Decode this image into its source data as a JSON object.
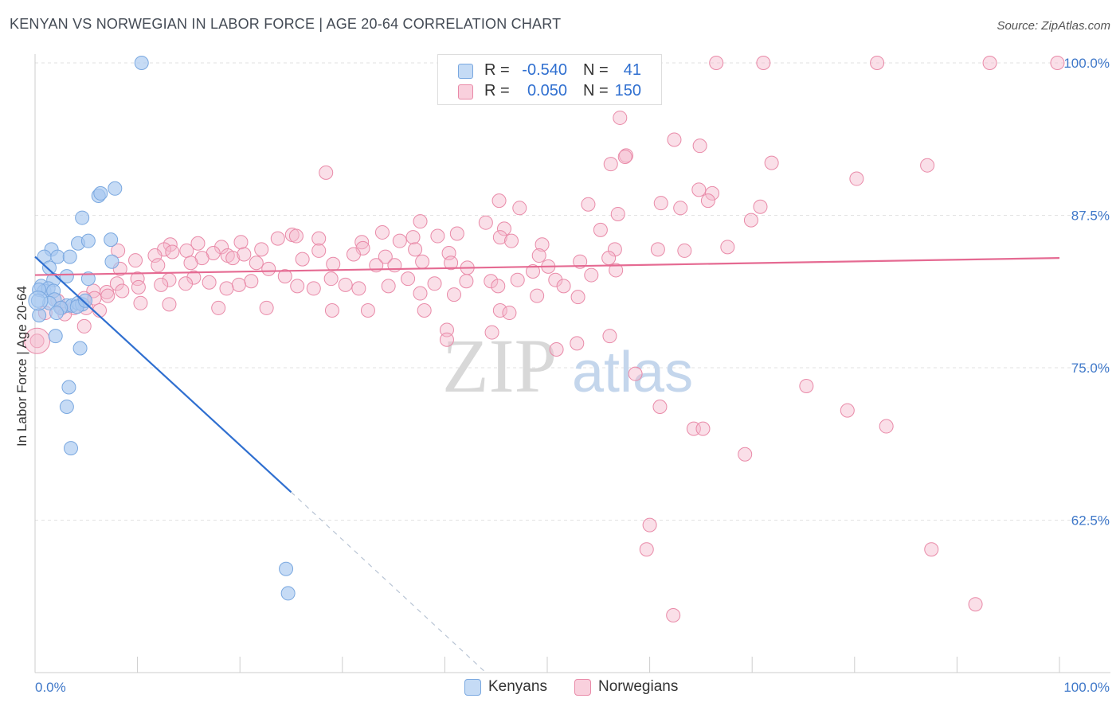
{
  "header": {
    "title": "KENYAN VS NORWEGIAN IN LABOR FORCE | AGE 20-64 CORRELATION CHART",
    "source": "Source: ZipAtlas.com"
  },
  "watermark": {
    "left": "ZIP",
    "right": "atlas"
  },
  "legend": {
    "r_label": "R =",
    "n_label": "N =",
    "rows": [
      {
        "r": "-0.540",
        "n": "41",
        "color": "#a8c8f0"
      },
      {
        "r": "0.050",
        "n": "150",
        "color": "#f5b8cb"
      }
    ]
  },
  "chart_data": {
    "type": "scatter",
    "title": "KENYAN VS NORWEGIAN IN LABOR FORCE | AGE 20-64 CORRELATION CHART",
    "xlabel": "",
    "ylabel": "In Labor Force | Age 20-64",
    "xlim": [
      0,
      100
    ],
    "ylim": [
      50,
      100
    ],
    "x_tick_labels": [
      "0.0%",
      "100.0%"
    ],
    "y_ticks": [
      {
        "value": 100.0,
        "label": "100.0%"
      },
      {
        "value": 87.5,
        "label": "87.5%"
      },
      {
        "value": 75.0,
        "label": "75.0%"
      },
      {
        "value": 62.5,
        "label": "62.5%"
      }
    ],
    "grid": true,
    "legend_position": "top-center",
    "series": [
      {
        "name": "Kenyans",
        "color": "#a8c8f0",
        "stroke": "#7aa8e0",
        "trend": {
          "color": "#2f6fd0",
          "x": [
            0,
            25
          ],
          "y": [
            84.1,
            64.8
          ],
          "dashed_extension_to": [
            44,
            50
          ]
        },
        "points": [
          [
            10.4,
            100.0
          ],
          [
            6.2,
            89.1
          ],
          [
            4.6,
            87.3
          ],
          [
            6.4,
            89.3
          ],
          [
            7.8,
            89.7
          ],
          [
            4.2,
            85.2
          ],
          [
            5.2,
            85.4
          ],
          [
            7.4,
            85.5
          ],
          [
            1.6,
            84.7
          ],
          [
            0.9,
            84.1
          ],
          [
            2.2,
            84.1
          ],
          [
            3.4,
            84.1
          ],
          [
            7.5,
            83.7
          ],
          [
            1.4,
            83.2
          ],
          [
            1.8,
            82.2
          ],
          [
            3.1,
            82.5
          ],
          [
            5.2,
            82.3
          ],
          [
            0.6,
            81.7
          ],
          [
            0.9,
            81.3
          ],
          [
            1.3,
            81.5
          ],
          [
            1.8,
            81.3
          ],
          [
            1.9,
            80.6
          ],
          [
            1.4,
            80.3
          ],
          [
            3.1,
            80.1
          ],
          [
            3.6,
            80.1
          ],
          [
            4.2,
            80.3
          ],
          [
            4.6,
            80.2
          ],
          [
            2.5,
            79.9
          ],
          [
            4.1,
            80.0
          ],
          [
            4.9,
            80.5
          ],
          [
            0.4,
            81.4
          ],
          [
            0.4,
            79.3
          ],
          [
            2.1,
            79.5
          ],
          [
            2.0,
            77.6
          ],
          [
            4.4,
            76.6
          ],
          [
            3.3,
            73.4
          ],
          [
            3.1,
            71.8
          ],
          [
            3.5,
            68.4
          ],
          [
            24.5,
            58.5
          ],
          [
            24.7,
            56.5
          ],
          [
            0.3,
            80.5
          ]
        ]
      },
      {
        "name": "Norwegians",
        "color": "#f5b8cb",
        "stroke": "#e98aa8",
        "trend": {
          "color": "#e56a92",
          "x": [
            0,
            100
          ],
          "y": [
            82.6,
            84.0
          ]
        },
        "points": [
          [
            66.5,
            100.0
          ],
          [
            71.1,
            100.0
          ],
          [
            82.2,
            100.0
          ],
          [
            93.2,
            100.0
          ],
          [
            99.8,
            100.0
          ],
          [
            57.1,
            95.5
          ],
          [
            62.4,
            93.7
          ],
          [
            64.9,
            93.2
          ],
          [
            57.7,
            92.4
          ],
          [
            57.6,
            92.3
          ],
          [
            56.2,
            91.7
          ],
          [
            71.9,
            91.8
          ],
          [
            87.1,
            91.6
          ],
          [
            28.4,
            91.0
          ],
          [
            80.2,
            90.5
          ],
          [
            64.8,
            89.6
          ],
          [
            66.1,
            89.3
          ],
          [
            65.7,
            88.7
          ],
          [
            45.3,
            88.7
          ],
          [
            61.1,
            88.5
          ],
          [
            54.0,
            88.4
          ],
          [
            47.3,
            88.1
          ],
          [
            63.0,
            88.1
          ],
          [
            70.8,
            88.2
          ],
          [
            56.9,
            87.6
          ],
          [
            37.6,
            87.0
          ],
          [
            44.0,
            86.9
          ],
          [
            69.9,
            87.1
          ],
          [
            45.8,
            86.4
          ],
          [
            55.2,
            86.3
          ],
          [
            33.9,
            86.1
          ],
          [
            41.2,
            86.0
          ],
          [
            25.1,
            85.9
          ],
          [
            25.5,
            85.8
          ],
          [
            39.3,
            85.8
          ],
          [
            23.7,
            85.6
          ],
          [
            27.7,
            85.6
          ],
          [
            36.9,
            85.7
          ],
          [
            45.4,
            85.7
          ],
          [
            13.2,
            85.1
          ],
          [
            15.9,
            85.2
          ],
          [
            20.1,
            85.3
          ],
          [
            31.9,
            85.3
          ],
          [
            35.6,
            85.4
          ],
          [
            46.5,
            85.4
          ],
          [
            49.5,
            85.1
          ],
          [
            12.6,
            84.7
          ],
          [
            18.2,
            84.9
          ],
          [
            22.1,
            84.7
          ],
          [
            32.0,
            84.8
          ],
          [
            37.1,
            84.7
          ],
          [
            56.6,
            84.7
          ],
          [
            60.8,
            84.7
          ],
          [
            63.4,
            84.6
          ],
          [
            67.6,
            84.9
          ],
          [
            8.1,
            84.6
          ],
          [
            11.7,
            84.2
          ],
          [
            13.4,
            84.5
          ],
          [
            14.8,
            84.6
          ],
          [
            17.4,
            84.4
          ],
          [
            18.8,
            84.2
          ],
          [
            16.3,
            84.0
          ],
          [
            19.3,
            84.0
          ],
          [
            20.4,
            84.3
          ],
          [
            31.1,
            84.3
          ],
          [
            34.2,
            84.1
          ],
          [
            40.4,
            84.4
          ],
          [
            27.7,
            84.6
          ],
          [
            49.2,
            84.2
          ],
          [
            56.0,
            84.0
          ],
          [
            9.8,
            83.8
          ],
          [
            12.0,
            83.4
          ],
          [
            15.2,
            83.6
          ],
          [
            21.6,
            83.6
          ],
          [
            26.1,
            83.9
          ],
          [
            29.1,
            83.5
          ],
          [
            33.3,
            83.4
          ],
          [
            35.1,
            83.4
          ],
          [
            37.8,
            83.7
          ],
          [
            40.6,
            83.6
          ],
          [
            50.1,
            83.3
          ],
          [
            53.2,
            83.7
          ],
          [
            42.2,
            83.2
          ],
          [
            48.6,
            82.9
          ],
          [
            54.3,
            82.6
          ],
          [
            56.7,
            83.0
          ],
          [
            22.8,
            83.1
          ],
          [
            8.3,
            83.1
          ],
          [
            10.0,
            82.3
          ],
          [
            13.1,
            82.2
          ],
          [
            15.5,
            82.4
          ],
          [
            21.1,
            82.1
          ],
          [
            24.4,
            82.5
          ],
          [
            28.9,
            82.3
          ],
          [
            36.4,
            82.3
          ],
          [
            42.1,
            82.1
          ],
          [
            44.5,
            82.1
          ],
          [
            47.1,
            82.2
          ],
          [
            50.8,
            82.2
          ],
          [
            8.0,
            81.9
          ],
          [
            10.1,
            81.6
          ],
          [
            12.3,
            81.8
          ],
          [
            14.7,
            81.9
          ],
          [
            17.0,
            82.0
          ],
          [
            19.9,
            81.8
          ],
          [
            25.6,
            81.7
          ],
          [
            30.3,
            81.8
          ],
          [
            34.5,
            81.7
          ],
          [
            39.0,
            81.9
          ],
          [
            45.2,
            81.7
          ],
          [
            51.6,
            81.7
          ],
          [
            18.7,
            81.5
          ],
          [
            27.2,
            81.5
          ],
          [
            31.6,
            81.5
          ],
          [
            37.6,
            81.1
          ],
          [
            40.9,
            81.0
          ],
          [
            49.0,
            80.9
          ],
          [
            5.7,
            81.3
          ],
          [
            7.0,
            81.2
          ],
          [
            8.5,
            81.3
          ],
          [
            53.0,
            80.8
          ],
          [
            2.2,
            80.5
          ],
          [
            4.8,
            80.7
          ],
          [
            5.8,
            80.7
          ],
          [
            7.1,
            80.9
          ],
          [
            10.3,
            80.3
          ],
          [
            13.1,
            80.2
          ],
          [
            17.9,
            79.9
          ],
          [
            22.6,
            79.9
          ],
          [
            29.0,
            79.7
          ],
          [
            32.5,
            79.7
          ],
          [
            38.0,
            79.7
          ],
          [
            45.4,
            79.7
          ],
          [
            46.3,
            79.5
          ],
          [
            1.0,
            79.5
          ],
          [
            2.6,
            79.9
          ],
          [
            3.8,
            79.9
          ],
          [
            5.0,
            79.9
          ],
          [
            6.3,
            79.7
          ],
          [
            2.9,
            79.4
          ],
          [
            4.8,
            78.4
          ],
          [
            40.2,
            78.1
          ],
          [
            44.6,
            77.9
          ],
          [
            56.1,
            77.6
          ],
          [
            40.2,
            77.3
          ],
          [
            52.9,
            77.0
          ],
          [
            50.9,
            76.5
          ],
          [
            58.6,
            74.5
          ],
          [
            75.3,
            73.5
          ],
          [
            61.0,
            71.8
          ],
          [
            79.3,
            71.5
          ],
          [
            64.3,
            70.0
          ],
          [
            65.2,
            70.0
          ],
          [
            83.1,
            70.2
          ],
          [
            69.3,
            67.9
          ],
          [
            60.0,
            62.1
          ],
          [
            59.7,
            60.1
          ],
          [
            87.5,
            60.1
          ],
          [
            62.3,
            54.7
          ],
          [
            91.8,
            55.6
          ],
          [
            0.2,
            77.2
          ]
        ]
      }
    ]
  },
  "bottom_legend": [
    "Kenyans",
    "Norwegians"
  ]
}
